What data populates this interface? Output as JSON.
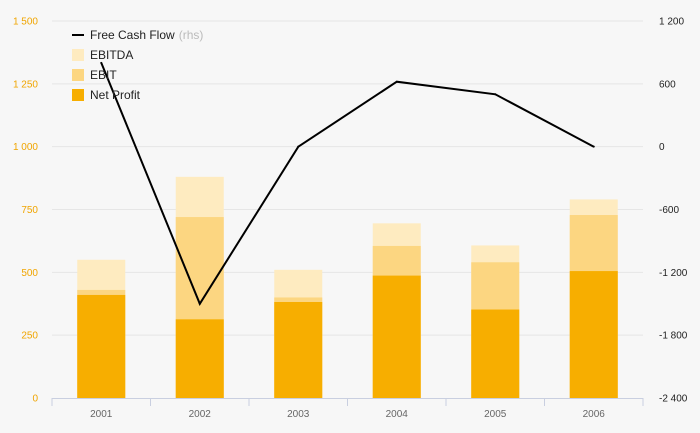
{
  "chart_data": {
    "type": "bar",
    "categories": [
      "2001",
      "2002",
      "2003",
      "2004",
      "2005",
      "2006"
    ],
    "series": [
      {
        "name": "EBITDA",
        "kind": "bar",
        "color": "#feebc0",
        "values": [
          550,
          880,
          510,
          695,
          607,
          790
        ]
      },
      {
        "name": "EBIT",
        "kind": "bar",
        "color": "#fcd681",
        "values": [
          430,
          720,
          400,
          605,
          540,
          728
        ]
      },
      {
        "name": "Net Profit",
        "kind": "bar",
        "color": "#f7ae00",
        "values": [
          410,
          313,
          382,
          487,
          352,
          505
        ]
      },
      {
        "name": "Free Cash Flow",
        "name_suffix": "(rhs)",
        "kind": "line",
        "axis": "right",
        "color": "#000000",
        "values": [
          800,
          -1500,
          0,
          620,
          500,
          0
        ]
      }
    ],
    "left_axis": {
      "ylim": [
        0,
        1500
      ],
      "ticks": [
        0,
        250,
        500,
        750,
        1000,
        1250,
        1500
      ],
      "tick_labels": [
        "0",
        "250",
        "500",
        "750",
        "1 000",
        "1 250",
        "1 500"
      ],
      "color": "#f0a500"
    },
    "right_axis": {
      "ylim": [
        -2400,
        1200
      ],
      "ticks": [
        -2400,
        -1800,
        -1200,
        -600,
        0,
        600,
        1200
      ],
      "tick_labels": [
        "-2 400",
        "-1 800",
        "-1 200",
        "-600",
        "0",
        "600",
        "1 200"
      ]
    },
    "grid": true,
    "legend_position": "top-left"
  }
}
